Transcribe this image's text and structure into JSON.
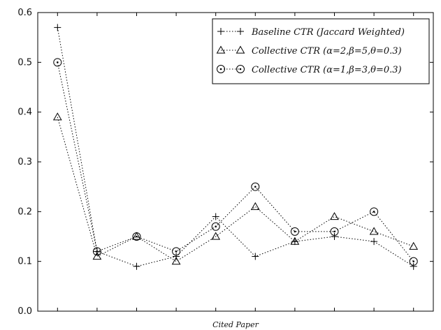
{
  "chart_data": {
    "type": "line",
    "title": "",
    "xlabel": "Cited Paper",
    "ylabel": "",
    "ylim": [
      0.0,
      0.6
    ],
    "yticks": [
      "0.0",
      "0.1",
      "0.2",
      "0.3",
      "0.4",
      "0.5",
      "0.6"
    ],
    "x": [
      1,
      2,
      3,
      4,
      5,
      6,
      7,
      8,
      9,
      10
    ],
    "grid": false,
    "legend_position": "top-right",
    "series": [
      {
        "name": "Baseline CTR (Jaccard Weighted)",
        "marker": "plus",
        "values": [
          0.57,
          0.12,
          0.09,
          0.11,
          0.19,
          0.11,
          0.14,
          0.15,
          0.14,
          0.09
        ]
      },
      {
        "name": "Collective CTR (α=2,β=5,θ=0.3)",
        "marker": "triangle",
        "values": [
          0.39,
          0.11,
          0.15,
          0.1,
          0.15,
          0.21,
          0.14,
          0.19,
          0.16,
          0.13
        ]
      },
      {
        "name": "Collective CTR (α=1,β=3,θ=0.3)",
        "marker": "circle",
        "values": [
          0.5,
          0.12,
          0.15,
          0.12,
          0.17,
          0.25,
          0.16,
          0.16,
          0.2,
          0.1
        ]
      }
    ]
  }
}
